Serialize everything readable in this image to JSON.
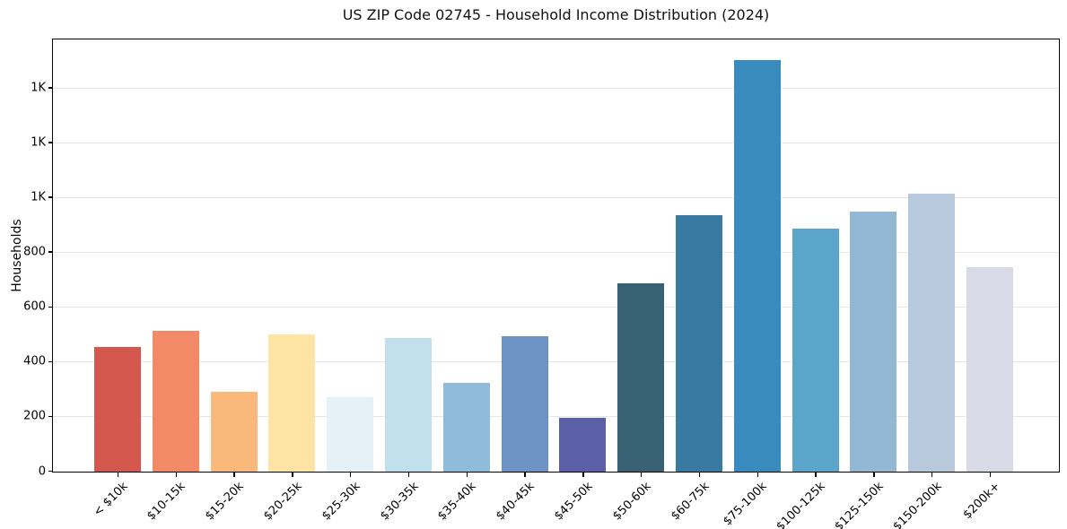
{
  "chart_data": {
    "type": "bar",
    "title": "US ZIP Code 02745 - Household Income Distribution (2024)",
    "xlabel": "",
    "ylabel": "Households",
    "categories": [
      "< $10k",
      "$10-15k",
      "$15-20k",
      "$20-25k",
      "$25-30k",
      "$30-35k",
      "$35-40k",
      "$40-45k",
      "$45-50k",
      "$50-60k",
      "$60-75k",
      "$75-100k",
      "$100-125k",
      "$125-150k",
      "$150-200k",
      "$200k+"
    ],
    "values": [
      455,
      514,
      292,
      501,
      273,
      488,
      325,
      494,
      196,
      687,
      936,
      1502,
      887,
      950,
      1015,
      747
    ],
    "bar_colors": [
      "#d4574e",
      "#f28a68",
      "#fab97b",
      "#fde3a4",
      "#e4f1f6",
      "#c0e0ed",
      "#90bcdc",
      "#6d93c4",
      "#5b5fa8",
      "#386174",
      "#387aa2",
      "#3a8bbd",
      "#5ba4ca",
      "#92b8d5",
      "#b9c9dd",
      "#d8dae6"
    ],
    "ylim": [
      0,
      1575
    ],
    "yticks": {
      "values": [
        0,
        200,
        400,
        600,
        800,
        1000,
        1200,
        1400
      ],
      "labels": [
        "0",
        "200",
        "400",
        "600",
        "800",
        "1K",
        "1K",
        "1K"
      ]
    },
    "grid": "horizontal gridlines on",
    "legend": "none",
    "colors": {
      "gridline": "#e6e6e6",
      "spine": "#000000",
      "background": "#ffffff",
      "text": "#000000"
    }
  }
}
